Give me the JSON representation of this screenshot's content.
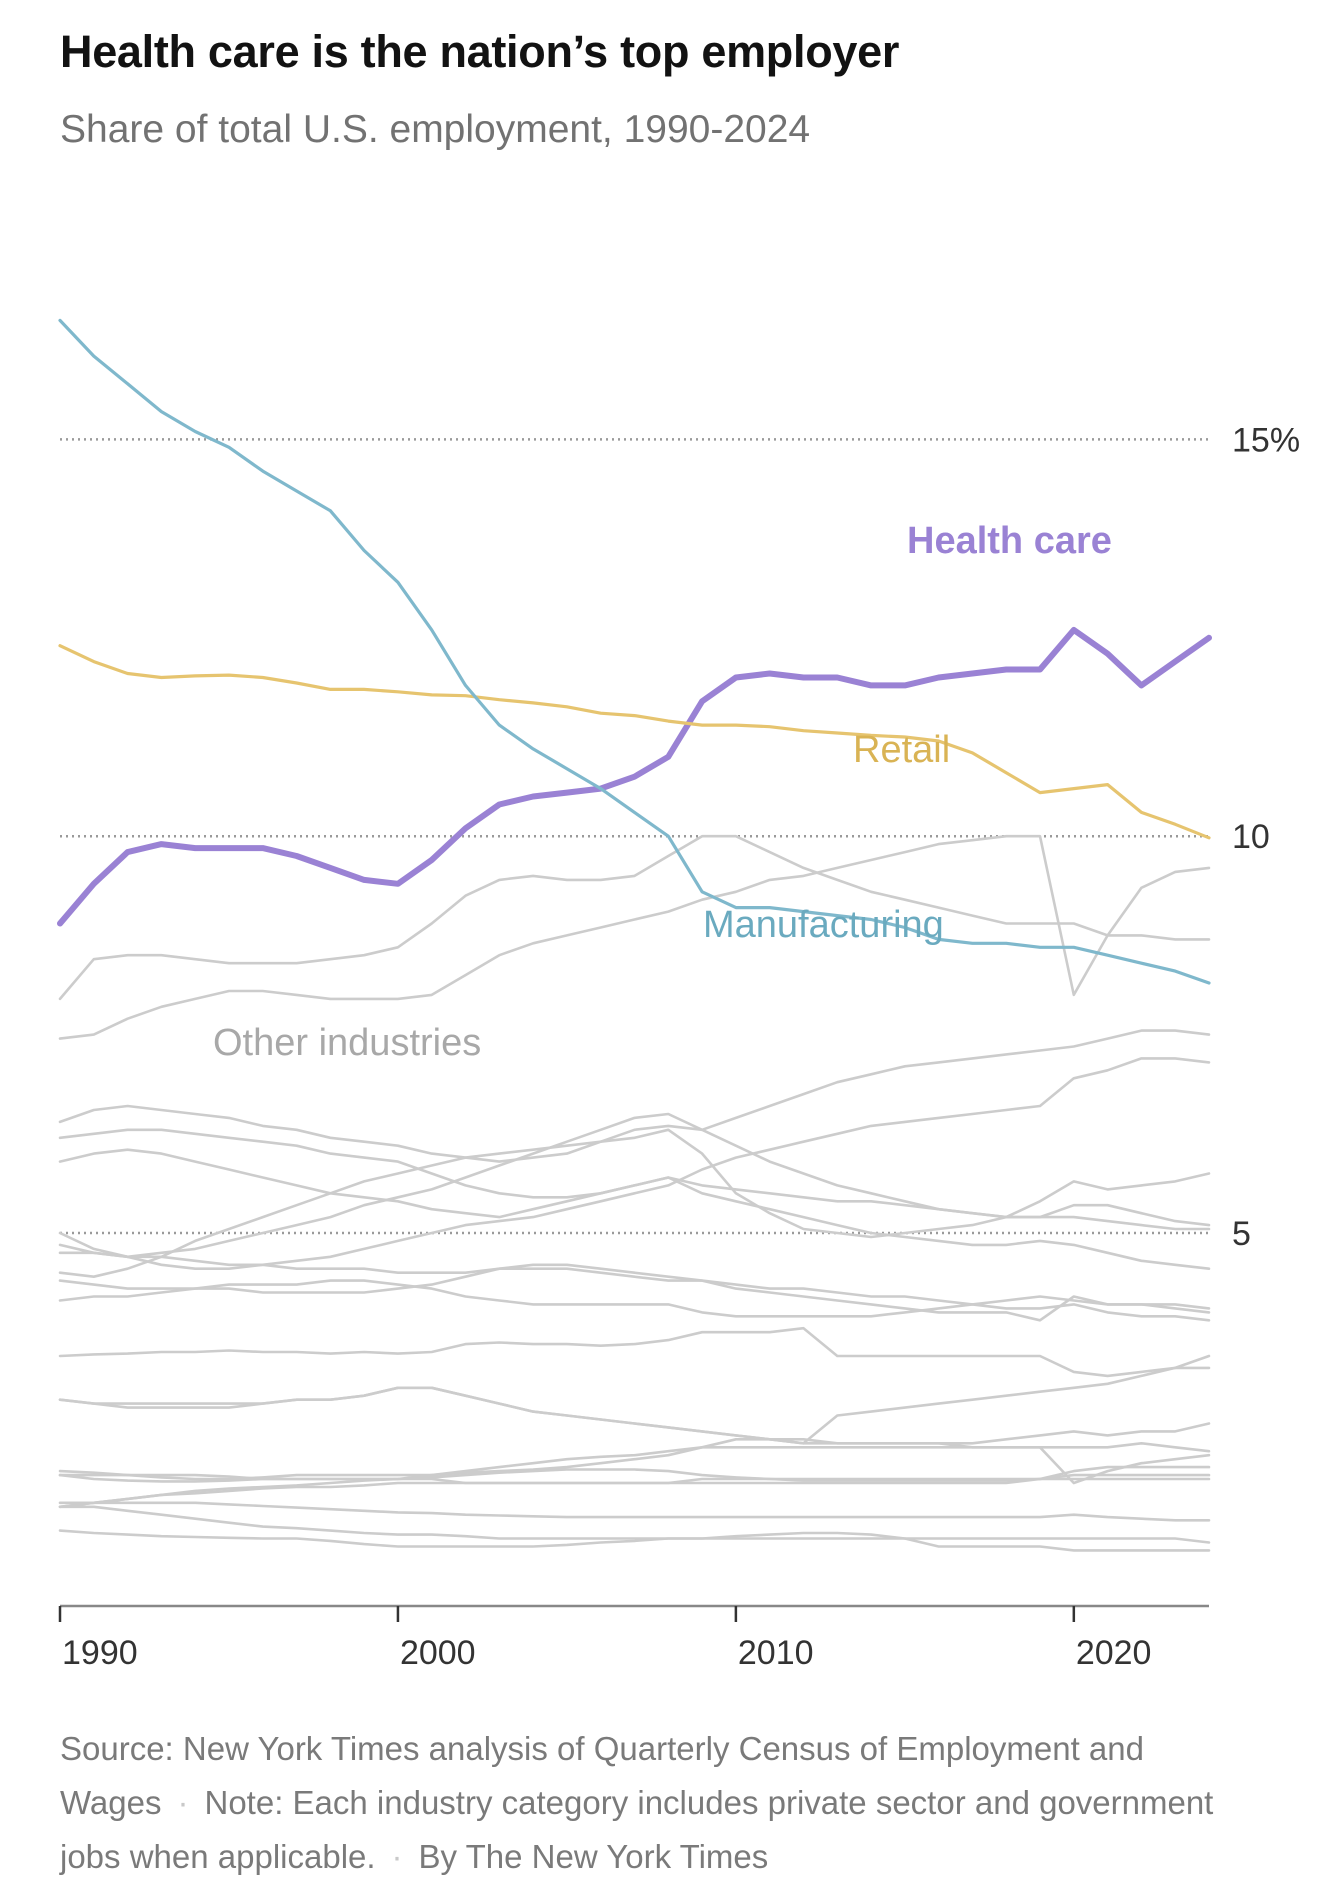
{
  "chart_data": {
    "type": "line",
    "title": "Health care is the nation’s top employer",
    "subtitle": "Share of total U.S. employment, 1990-2024",
    "xlabel": "",
    "ylabel": "",
    "xlim": [
      1990,
      2024
    ],
    "ylim": [
      0.3,
      17.5
    ],
    "x_ticks": [
      1990,
      2000,
      2010,
      2020
    ],
    "x_tick_labels": [
      "1990",
      "2000",
      "2010",
      "2020"
    ],
    "y_gridlines": [
      5,
      10,
      15
    ],
    "y_tick_labels": [
      "5",
      "10",
      "15%"
    ],
    "grid": "dotted horizontal at 5, 10 and 15",
    "legend": "direct labels on lines",
    "x": [
      1990,
      1991,
      1992,
      1993,
      1994,
      1995,
      1996,
      1997,
      1998,
      1999,
      2000,
      2001,
      2002,
      2003,
      2004,
      2005,
      2006,
      2007,
      2008,
      2009,
      2010,
      2011,
      2012,
      2013,
      2014,
      2015,
      2016,
      2017,
      2018,
      2019,
      2020,
      2021,
      2022,
      2023,
      2024
    ],
    "series": [
      {
        "name": "Health care",
        "color": "#9a82d4",
        "values": [
          8.9,
          9.4,
          9.8,
          9.9,
          9.85,
          9.85,
          9.85,
          9.75,
          9.6,
          9.45,
          9.4,
          9.7,
          10.1,
          10.4,
          10.5,
          10.55,
          10.6,
          10.75,
          11.0,
          11.7,
          12.0,
          12.05,
          12.0,
          12.0,
          11.9,
          11.9,
          12.0,
          12.05,
          12.1,
          12.1,
          12.6,
          12.3,
          11.9,
          12.2,
          12.5
        ]
      },
      {
        "name": "Retail",
        "color": "#e6c46f",
        "values": [
          12.4,
          12.2,
          12.05,
          12.0,
          12.02,
          12.03,
          12.0,
          11.93,
          11.85,
          11.85,
          11.82,
          11.78,
          11.77,
          11.72,
          11.68,
          11.63,
          11.55,
          11.52,
          11.45,
          11.4,
          11.4,
          11.38,
          11.33,
          11.3,
          11.27,
          11.25,
          11.2,
          11.05,
          10.8,
          10.55,
          10.6,
          10.65,
          10.3,
          10.15,
          9.98
        ]
      },
      {
        "name": "Manufacturing",
        "color": "#7fb8cc",
        "values": [
          16.5,
          16.05,
          15.7,
          15.35,
          15.1,
          14.9,
          14.6,
          14.35,
          14.1,
          13.6,
          13.2,
          12.6,
          11.9,
          11.4,
          11.1,
          10.85,
          10.6,
          10.3,
          10.0,
          9.3,
          9.1,
          9.1,
          9.05,
          9.0,
          8.95,
          8.85,
          8.7,
          8.65,
          8.65,
          8.6,
          8.6,
          8.5,
          8.4,
          8.3,
          8.15
        ]
      }
    ],
    "other_industries_label": "Other industries",
    "other_industries_color": "#cccccc",
    "other_industries": [
      [
        7.95,
        8.45,
        8.5,
        8.5,
        8.45,
        8.4,
        8.4,
        8.4,
        8.45,
        8.5,
        8.6,
        8.9,
        9.25,
        9.45,
        9.5,
        9.45,
        9.45,
        9.5,
        9.75,
        10.0,
        10.0,
        9.8,
        9.6,
        9.45,
        9.3,
        9.2,
        9.1,
        9.0,
        8.9,
        8.9,
        8.9,
        8.75,
        8.75,
        8.7,
        8.7
      ],
      [
        7.45,
        7.5,
        7.7,
        7.85,
        7.95,
        8.05,
        8.05,
        8.0,
        7.95,
        7.95,
        7.95,
        8.0,
        8.25,
        8.5,
        8.65,
        8.75,
        8.85,
        8.95,
        9.05,
        9.2,
        9.3,
        9.45,
        9.5,
        9.6,
        9.7,
        9.8,
        9.9,
        9.95,
        10.0,
        10.0,
        8.0,
        8.75,
        9.35,
        9.55,
        9.6
      ],
      [
        6.4,
        6.55,
        6.6,
        6.55,
        6.5,
        6.45,
        6.35,
        6.3,
        6.2,
        6.15,
        6.1,
        6.0,
        5.95,
        5.9,
        5.95,
        6.0,
        6.15,
        6.3,
        6.35,
        6.3,
        6.45,
        6.6,
        6.75,
        6.9,
        7.0,
        7.1,
        7.15,
        7.2,
        7.25,
        7.3,
        7.35,
        7.45,
        7.55,
        7.55,
        7.5
      ],
      [
        6.2,
        6.25,
        6.3,
        6.3,
        6.25,
        6.2,
        6.15,
        6.1,
        6.0,
        5.95,
        5.9,
        5.75,
        5.6,
        5.5,
        5.45,
        5.45,
        5.5,
        5.6,
        5.7,
        5.6,
        5.55,
        5.5,
        5.45,
        5.4,
        5.4,
        5.35,
        5.3,
        5.25,
        5.2,
        5.2,
        5.2,
        5.15,
        5.1,
        5.05,
        5.05
      ],
      [
        5.9,
        6.0,
        6.05,
        6.0,
        5.9,
        5.8,
        5.7,
        5.6,
        5.5,
        5.45,
        5.4,
        5.3,
        5.25,
        5.2,
        5.3,
        5.4,
        5.5,
        5.6,
        5.7,
        5.5,
        5.4,
        5.3,
        5.2,
        5.1,
        5.0,
        4.95,
        4.9,
        4.85,
        4.85,
        4.9,
        4.85,
        4.75,
        4.65,
        4.6,
        4.55
      ],
      [
        5.0,
        4.8,
        4.7,
        4.6,
        4.55,
        4.55,
        4.6,
        4.65,
        4.7,
        4.8,
        4.9,
        5.0,
        5.1,
        5.15,
        5.2,
        5.3,
        5.4,
        5.5,
        5.6,
        5.8,
        5.95,
        6.05,
        6.15,
        6.25,
        6.35,
        6.4,
        6.45,
        6.5,
        6.55,
        6.6,
        6.95,
        7.05,
        7.2,
        7.2,
        7.15
      ],
      [
        4.5,
        4.45,
        4.55,
        4.7,
        4.9,
        5.05,
        5.2,
        5.35,
        5.5,
        5.65,
        5.75,
        5.85,
        5.95,
        6.0,
        6.05,
        6.1,
        6.15,
        6.2,
        6.3,
        6.0,
        5.5,
        5.25,
        5.05,
        5.0,
        4.95,
        5.0,
        5.05,
        5.1,
        5.2,
        5.4,
        5.65,
        5.55,
        5.6,
        5.65,
        5.75
      ],
      [
        4.85,
        4.75,
        4.7,
        4.75,
        4.8,
        4.9,
        5.0,
        5.1,
        5.2,
        5.35,
        5.45,
        5.55,
        5.7,
        5.85,
        6.0,
        6.15,
        6.3,
        6.45,
        6.5,
        6.3,
        6.1,
        5.9,
        5.75,
        5.6,
        5.5,
        5.4,
        5.3,
        5.25,
        5.2,
        5.2,
        5.35,
        5.35,
        5.25,
        5.15,
        5.1
      ],
      [
        4.75,
        4.75,
        4.7,
        4.7,
        4.65,
        4.6,
        4.6,
        4.55,
        4.55,
        4.55,
        4.5,
        4.5,
        4.5,
        4.55,
        4.55,
        4.55,
        4.5,
        4.45,
        4.4,
        4.4,
        4.35,
        4.3,
        4.3,
        4.25,
        4.2,
        4.2,
        4.15,
        4.1,
        4.05,
        4.05,
        4.1,
        4.0,
        3.95,
        3.95,
        3.9
      ],
      [
        4.4,
        4.35,
        4.3,
        4.3,
        4.3,
        4.3,
        4.25,
        4.25,
        4.25,
        4.25,
        4.3,
        4.35,
        4.45,
        4.55,
        4.6,
        4.6,
        4.55,
        4.5,
        4.45,
        4.4,
        4.3,
        4.25,
        4.2,
        4.15,
        4.1,
        4.05,
        4.0,
        4.0,
        4.0,
        3.9,
        4.2,
        4.1,
        4.1,
        4.05,
        4.0
      ],
      [
        4.15,
        4.2,
        4.2,
        4.25,
        4.3,
        4.35,
        4.35,
        4.35,
        4.4,
        4.4,
        4.35,
        4.3,
        4.2,
        4.15,
        4.1,
        4.1,
        4.1,
        4.1,
        4.1,
        4.0,
        3.95,
        3.95,
        3.95,
        3.95,
        3.95,
        4.0,
        4.05,
        4.1,
        4.15,
        4.2,
        4.15,
        4.1,
        4.1,
        4.1,
        4.05
      ],
      [
        3.45,
        3.47,
        3.48,
        3.5,
        3.5,
        3.52,
        3.5,
        3.5,
        3.48,
        3.5,
        3.48,
        3.5,
        3.6,
        3.62,
        3.6,
        3.6,
        3.58,
        3.6,
        3.65,
        3.75,
        3.75,
        3.75,
        3.8,
        3.45,
        3.45,
        3.45,
        3.45,
        3.45,
        3.45,
        3.45,
        3.25,
        3.2,
        3.25,
        3.3,
        3.3
      ],
      [
        2.9,
        2.85,
        2.85,
        2.85,
        2.85,
        2.85,
        2.85,
        2.9,
        2.9,
        2.95,
        3.05,
        3.05,
        2.95,
        2.85,
        2.75,
        2.7,
        2.65,
        2.6,
        2.55,
        2.5,
        2.45,
        2.4,
        2.35,
        2.35,
        2.35,
        2.35,
        2.35,
        2.35,
        2.4,
        2.45,
        2.5,
        2.45,
        2.5,
        2.5,
        2.6
      ],
      [
        2.9,
        2.85,
        2.8,
        2.8,
        2.8,
        2.8,
        2.85,
        2.9,
        2.9,
        2.95,
        3.05,
        3.05,
        2.95,
        2.85,
        2.75,
        2.7,
        2.65,
        2.6,
        2.55,
        2.5,
        2.45,
        2.4,
        2.35,
        2.7,
        2.75,
        2.8,
        2.85,
        2.9,
        2.95,
        3.0,
        3.05,
        3.1,
        3.2,
        3.3,
        3.45
      ],
      [
        1.95,
        1.95,
        1.95,
        1.92,
        1.9,
        1.9,
        1.92,
        1.95,
        1.95,
        1.95,
        1.95,
        1.95,
        1.98,
        2.0,
        2.02,
        2.05,
        2.1,
        2.15,
        2.2,
        2.3,
        2.4,
        2.4,
        2.4,
        2.35,
        2.35,
        2.35,
        2.35,
        2.3,
        2.3,
        2.3,
        2.3,
        2.3,
        2.35,
        2.3,
        2.25
      ],
      [
        1.55,
        1.6,
        1.65,
        1.7,
        1.75,
        1.78,
        1.8,
        1.82,
        1.85,
        1.88,
        1.9,
        1.95,
        2.0,
        2.05,
        2.1,
        2.15,
        2.18,
        2.2,
        2.25,
        2.3,
        2.3,
        2.3,
        2.3,
        2.3,
        2.3,
        2.3,
        2.3,
        2.3,
        2.3,
        2.3,
        1.85,
        2.0,
        2.1,
        2.15,
        2.2
      ],
      [
        2.0,
        1.98,
        1.95,
        1.95,
        1.95,
        1.93,
        1.9,
        1.9,
        1.9,
        1.9,
        1.9,
        1.9,
        1.85,
        1.85,
        1.85,
        1.85,
        1.85,
        1.85,
        1.85,
        1.9,
        1.9,
        1.9,
        1.9,
        1.9,
        1.9,
        1.9,
        1.9,
        1.9,
        1.9,
        1.9,
        1.95,
        1.95,
        1.95,
        1.95,
        1.95
      ],
      [
        1.95,
        1.9,
        1.88,
        1.87,
        1.87,
        1.88,
        1.9,
        1.9,
        1.9,
        1.9,
        1.9,
        1.92,
        1.95,
        1.98,
        2.0,
        2.02,
        2.02,
        2.02,
        2.0,
        1.95,
        1.92,
        1.9,
        1.88,
        1.88,
        1.88,
        1.88,
        1.88,
        1.88,
        1.88,
        1.9,
        1.9,
        1.9,
        1.9,
        1.9,
        1.9
      ],
      [
        1.55,
        1.6,
        1.65,
        1.7,
        1.72,
        1.75,
        1.78,
        1.8,
        1.8,
        1.82,
        1.85,
        1.85,
        1.85,
        1.85,
        1.85,
        1.85,
        1.85,
        1.85,
        1.85,
        1.85,
        1.85,
        1.85,
        1.85,
        1.85,
        1.85,
        1.85,
        1.85,
        1.85,
        1.85,
        1.9,
        2.0,
        2.05,
        2.05,
        2.05,
        2.05
      ],
      [
        1.6,
        1.6,
        1.6,
        1.6,
        1.6,
        1.58,
        1.56,
        1.54,
        1.52,
        1.5,
        1.48,
        1.47,
        1.45,
        1.44,
        1.43,
        1.42,
        1.42,
        1.42,
        1.42,
        1.42,
        1.42,
        1.42,
        1.42,
        1.42,
        1.42,
        1.42,
        1.42,
        1.42,
        1.42,
        1.42,
        1.45,
        1.42,
        1.4,
        1.38,
        1.38
      ],
      [
        1.55,
        1.55,
        1.5,
        1.45,
        1.4,
        1.35,
        1.3,
        1.28,
        1.25,
        1.22,
        1.2,
        1.2,
        1.18,
        1.15,
        1.15,
        1.15,
        1.15,
        1.15,
        1.15,
        1.15,
        1.15,
        1.15,
        1.15,
        1.15,
        1.15,
        1.15,
        1.15,
        1.15,
        1.15,
        1.15,
        1.15,
        1.15,
        1.15,
        1.15,
        1.1
      ],
      [
        1.25,
        1.22,
        1.2,
        1.18,
        1.17,
        1.16,
        1.15,
        1.15,
        1.12,
        1.08,
        1.05,
        1.05,
        1.05,
        1.05,
        1.05,
        1.07,
        1.1,
        1.12,
        1.15,
        1.15,
        1.18,
        1.2,
        1.22,
        1.22,
        1.2,
        1.15,
        1.05,
        1.05,
        1.05,
        1.05,
        1.0,
        1.0,
        1.0,
        1.0,
        1.0
      ]
    ]
  },
  "footer": {
    "source": "Source: New York Times analysis of Quarterly Census of Employment and Wages",
    "note": "Note: Each industry category includes private sector and government jobs when applicable.",
    "credit": "By The New York Times"
  }
}
